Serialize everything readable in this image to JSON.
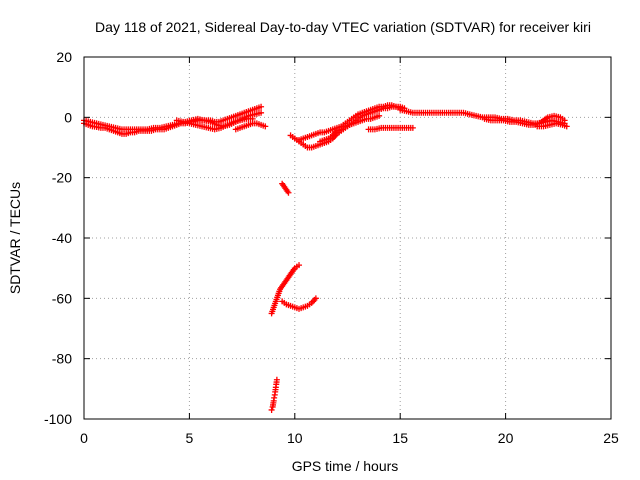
{
  "chart_data": {
    "type": "scatter",
    "title": "Day 118 of 2021, Sidereal Day-to-day VTEC variation (SDTVAR) for receiver kiri",
    "xlabel": "GPS time / hours",
    "ylabel": "SDTVAR / TECUs",
    "xlim": [
      0,
      25
    ],
    "ylim": [
      -100,
      20
    ],
    "xticks": [
      0,
      5,
      10,
      15,
      20,
      25
    ],
    "yticks": [
      20,
      0,
      -20,
      -40,
      -60,
      -80,
      -100
    ],
    "grid": true,
    "marker": "plus",
    "color": "#ff0000",
    "series": [
      {
        "values": [
          [
            0.0,
            -2
          ],
          [
            0.2,
            -2.5
          ],
          [
            0.4,
            -3
          ],
          [
            0.6,
            -3.2
          ],
          [
            0.8,
            -3.5
          ],
          [
            1.0,
            -3.5
          ],
          [
            1.2,
            -4
          ],
          [
            1.4,
            -4.5
          ],
          [
            1.6,
            -5
          ],
          [
            1.8,
            -5.5
          ],
          [
            2.0,
            -5.5
          ],
          [
            2.2,
            -5
          ],
          [
            2.4,
            -5
          ],
          [
            2.6,
            -4.5
          ],
          [
            2.8,
            -4.5
          ],
          [
            3.0,
            -4.5
          ],
          [
            3.2,
            -4.5
          ],
          [
            3.4,
            -4
          ],
          [
            3.6,
            -4
          ],
          [
            3.8,
            -4
          ],
          [
            4.0,
            -3.5
          ],
          [
            4.2,
            -3
          ],
          [
            4.4,
            -2.5
          ],
          [
            4.6,
            -2
          ],
          [
            4.8,
            -2
          ],
          [
            5.0,
            -1.5
          ],
          [
            5.2,
            -1.5
          ],
          [
            5.4,
            -1
          ],
          [
            5.6,
            -1
          ],
          [
            5.8,
            -1
          ],
          [
            6.0,
            -1
          ],
          [
            6.2,
            -1.5
          ],
          [
            6.4,
            -1.5
          ],
          [
            6.6,
            -1
          ],
          [
            6.8,
            -0.5
          ],
          [
            7.0,
            0
          ],
          [
            7.2,
            0.5
          ],
          [
            7.4,
            1
          ],
          [
            7.6,
            1.5
          ],
          [
            7.8,
            2
          ],
          [
            8.0,
            2.5
          ],
          [
            8.2,
            3
          ],
          [
            8.4,
            3.5
          ]
        ]
      },
      {
        "values": [
          [
            0.0,
            -1
          ],
          [
            0.3,
            -1.5
          ],
          [
            0.6,
            -2
          ],
          [
            0.9,
            -2.5
          ],
          [
            1.2,
            -3
          ],
          [
            1.5,
            -3.5
          ],
          [
            1.8,
            -4
          ],
          [
            2.1,
            -4
          ],
          [
            2.4,
            -4
          ],
          [
            2.7,
            -4
          ],
          [
            3.0,
            -4
          ],
          [
            3.3,
            -3.5
          ],
          [
            3.6,
            -3.5
          ],
          [
            3.9,
            -3
          ],
          [
            4.2,
            -2.5
          ],
          [
            4.5,
            -2
          ],
          [
            4.8,
            -1.5
          ],
          [
            5.1,
            -1
          ],
          [
            5.4,
            -0.5
          ],
          [
            5.7,
            -1
          ],
          [
            6.0,
            -1.5
          ],
          [
            6.3,
            -2.5
          ],
          [
            6.6,
            -3
          ],
          [
            6.9,
            -2.5
          ],
          [
            7.2,
            -1.5
          ],
          [
            7.5,
            -0.5
          ],
          [
            7.8,
            0.5
          ],
          [
            8.1,
            1
          ],
          [
            8.4,
            1.5
          ]
        ]
      },
      {
        "values": [
          [
            4.4,
            -1
          ],
          [
            4.7,
            -1.5
          ],
          [
            5.0,
            -2
          ],
          [
            5.3,
            -2.5
          ],
          [
            5.6,
            -3
          ],
          [
            5.9,
            -3.5
          ],
          [
            6.2,
            -4
          ],
          [
            6.5,
            -3.5
          ],
          [
            6.8,
            -2.5
          ],
          [
            7.1,
            -1.5
          ],
          [
            7.4,
            -1
          ],
          [
            7.7,
            -0.5
          ],
          [
            8.0,
            -0.5
          ]
        ]
      },
      {
        "values": [
          [
            7.2,
            -4
          ],
          [
            7.4,
            -3.5
          ],
          [
            7.6,
            -3
          ],
          [
            7.8,
            -2.5
          ],
          [
            8.0,
            -2
          ],
          [
            8.2,
            -2
          ],
          [
            8.4,
            -2.5
          ],
          [
            8.6,
            -3
          ]
        ]
      },
      {
        "values": [
          [
            9.4,
            -22
          ],
          [
            9.5,
            -23
          ],
          [
            9.6,
            -24
          ],
          [
            9.7,
            -25
          ]
        ]
      },
      {
        "values": [
          [
            9.8,
            -6
          ],
          [
            10.0,
            -7
          ],
          [
            10.2,
            -8
          ],
          [
            10.4,
            -9
          ],
          [
            10.6,
            -10
          ],
          [
            10.8,
            -10
          ],
          [
            11.0,
            -9.5
          ],
          [
            11.2,
            -9
          ],
          [
            11.4,
            -8.5
          ],
          [
            11.6,
            -8
          ],
          [
            11.8,
            -7
          ],
          [
            12.0,
            -5.5
          ],
          [
            12.2,
            -4.5
          ],
          [
            12.4,
            -3.5
          ],
          [
            12.6,
            -2.5
          ],
          [
            12.8,
            -1.5
          ],
          [
            13.0,
            -0.5
          ],
          [
            13.2,
            0.5
          ],
          [
            13.4,
            1
          ],
          [
            13.6,
            1.5
          ],
          [
            13.8,
            2
          ],
          [
            14.0,
            2.5
          ],
          [
            14.2,
            3
          ],
          [
            14.4,
            3
          ],
          [
            14.6,
            3.5
          ],
          [
            14.8,
            3.5
          ],
          [
            15.0,
            3
          ]
        ]
      },
      {
        "values": [
          [
            10.2,
            -7.5
          ],
          [
            10.4,
            -7
          ],
          [
            10.6,
            -6.5
          ],
          [
            10.8,
            -6
          ],
          [
            11.0,
            -5.5
          ],
          [
            11.2,
            -5
          ],
          [
            11.4,
            -5
          ],
          [
            11.6,
            -4.5
          ],
          [
            11.8,
            -4
          ],
          [
            12.0,
            -3.5
          ],
          [
            12.2,
            -3
          ],
          [
            12.4,
            -2
          ],
          [
            12.6,
            -1
          ],
          [
            12.8,
            0
          ],
          [
            13.0,
            1
          ],
          [
            13.2,
            1.5
          ],
          [
            13.4,
            2
          ],
          [
            13.6,
            2.5
          ],
          [
            13.8,
            3
          ],
          [
            14.0,
            3.5
          ],
          [
            14.2,
            3.5
          ],
          [
            14.4,
            4
          ],
          [
            14.6,
            4
          ],
          [
            14.8,
            3.5
          ],
          [
            15.0,
            3.5
          ],
          [
            15.2,
            3
          ]
        ]
      },
      {
        "values": [
          [
            11.2,
            -8
          ],
          [
            11.4,
            -7.5
          ],
          [
            11.6,
            -7
          ],
          [
            11.8,
            -6
          ],
          [
            12.0,
            -4.5
          ],
          [
            12.2,
            -4
          ],
          [
            12.4,
            -3
          ],
          [
            12.6,
            -2.5
          ],
          [
            12.8,
            -2
          ],
          [
            13.0,
            -1.5
          ],
          [
            13.2,
            -1
          ],
          [
            13.4,
            -0.5
          ],
          [
            13.6,
            -0.5
          ],
          [
            13.8,
            0
          ],
          [
            14.0,
            0.5
          ]
        ]
      },
      {
        "values": [
          [
            13.5,
            -4
          ],
          [
            13.8,
            -4
          ],
          [
            14.1,
            -3.5
          ],
          [
            14.4,
            -3.5
          ],
          [
            14.7,
            -3.5
          ],
          [
            15.0,
            -3.5
          ],
          [
            15.3,
            -3.5
          ],
          [
            15.6,
            -3.5
          ]
        ]
      },
      {
        "values": [
          [
            15.0,
            2.5
          ],
          [
            15.3,
            2
          ],
          [
            15.6,
            1.5
          ],
          [
            15.9,
            1.5
          ],
          [
            16.2,
            1.5
          ],
          [
            16.5,
            1.5
          ],
          [
            16.8,
            1.5
          ],
          [
            17.1,
            1.5
          ],
          [
            17.4,
            1.5
          ],
          [
            17.7,
            1.5
          ],
          [
            18.0,
            1.5
          ],
          [
            18.3,
            1
          ],
          [
            18.6,
            0.5
          ],
          [
            18.9,
            0
          ],
          [
            19.2,
            0
          ],
          [
            19.5,
            0
          ],
          [
            19.8,
            -0.5
          ],
          [
            20.1,
            -0.5
          ],
          [
            20.4,
            -1
          ],
          [
            20.7,
            -1
          ],
          [
            21.0,
            -1.5
          ],
          [
            21.3,
            -2
          ],
          [
            21.6,
            -2
          ],
          [
            21.9,
            -1.5
          ],
          [
            22.2,
            -1
          ],
          [
            22.5,
            -1.5
          ],
          [
            22.8,
            -2
          ]
        ]
      },
      {
        "values": [
          [
            19.0,
            -0.5
          ],
          [
            19.3,
            -1
          ],
          [
            19.6,
            -1
          ],
          [
            19.9,
            -1
          ],
          [
            20.2,
            -1.5
          ],
          [
            20.5,
            -1.5
          ],
          [
            20.8,
            -2
          ],
          [
            21.1,
            -2.5
          ],
          [
            21.4,
            -2.5
          ],
          [
            21.7,
            -1.5
          ],
          [
            22.0,
            0
          ],
          [
            22.3,
            0.5
          ],
          [
            22.6,
            0
          ],
          [
            22.8,
            -1
          ]
        ]
      },
      {
        "values": [
          [
            21.5,
            -3
          ],
          [
            21.8,
            -3
          ],
          [
            22.1,
            -2.5
          ],
          [
            22.4,
            -2
          ],
          [
            22.7,
            -2.5
          ],
          [
            22.9,
            -3
          ]
        ]
      },
      {
        "values": [
          [
            8.9,
            -65
          ],
          [
            9.0,
            -63
          ],
          [
            9.1,
            -61
          ],
          [
            9.2,
            -59
          ],
          [
            9.3,
            -57
          ],
          [
            9.4,
            -56
          ],
          [
            9.5,
            -55
          ],
          [
            9.6,
            -54
          ],
          [
            9.7,
            -53
          ],
          [
            9.8,
            -52
          ],
          [
            9.9,
            -51
          ],
          [
            10.0,
            -50
          ],
          [
            10.1,
            -49.5
          ],
          [
            10.2,
            -49
          ]
        ]
      },
      {
        "values": [
          [
            9.4,
            -61
          ],
          [
            9.6,
            -62
          ],
          [
            9.8,
            -62.5
          ],
          [
            10.0,
            -63
          ],
          [
            10.2,
            -63.5
          ],
          [
            10.4,
            -63
          ],
          [
            10.6,
            -62.5
          ],
          [
            10.8,
            -61.5
          ],
          [
            11.0,
            -60
          ]
        ]
      },
      {
        "values": [
          [
            8.9,
            -97
          ],
          [
            8.95,
            -96
          ],
          [
            9.0,
            -94
          ],
          [
            9.02,
            -93
          ],
          [
            9.05,
            -92
          ],
          [
            9.07,
            -91
          ],
          [
            9.1,
            -89.5
          ],
          [
            9.12,
            -88.5
          ],
          [
            9.15,
            -87
          ]
        ]
      }
    ]
  }
}
